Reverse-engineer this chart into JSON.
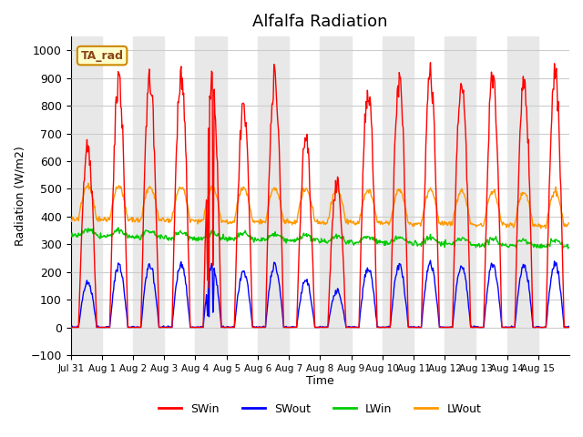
{
  "title": "Alfalfa Radiation",
  "ylabel": "Radiation (W/m2)",
  "xlabel": "Time",
  "ylim": [
    -100,
    1050
  ],
  "annotation": "TA_rad",
  "xtick_labels": [
    "Jul 31",
    "Aug 1",
    "Aug 2",
    "Aug 3",
    "Aug 4",
    "Aug 5",
    "Aug 6",
    "Aug 7",
    "Aug 8",
    "Aug 9",
    "Aug 10",
    "Aug 11",
    "Aug 12",
    "Aug 13",
    "Aug 14",
    "Aug 15"
  ],
  "legend_labels": [
    "SWin",
    "SWout",
    "LWin",
    "LWout"
  ],
  "legend_colors": [
    "#ff0000",
    "#0000ff",
    "#00cc00",
    "#ff9900"
  ],
  "lwin_base": 330,
  "lwout_base": 390,
  "background_color": "#ffffff",
  "stripe_color": "#e8e8e8",
  "grid_color": "#cccccc"
}
